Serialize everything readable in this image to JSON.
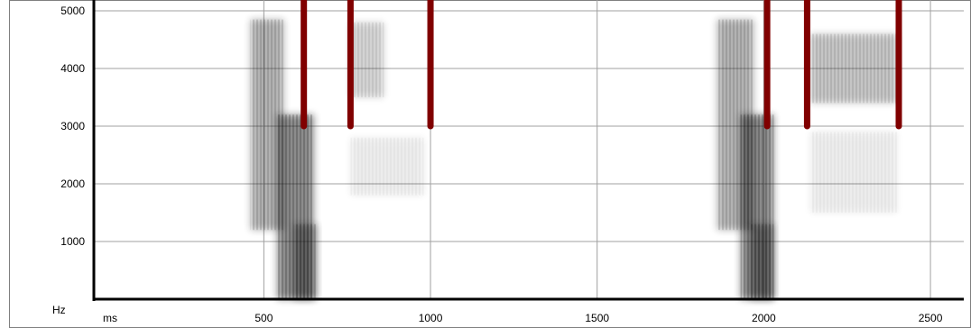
{
  "window": {
    "y_unit": "Hz",
    "x_unit": "ms"
  },
  "colors": {
    "background": "#ffffff",
    "grid": "#a0a0a0",
    "axis": "#000000",
    "marker": "#800000",
    "spectro_dark": "#1a1a1a"
  },
  "chart_data": {
    "type": "heatmap",
    "title": "",
    "xlabel": "ms",
    "ylabel": "Hz",
    "xlim": [
      -10,
      2600
    ],
    "ylim": [
      0,
      5000
    ],
    "x_ticks": [
      500,
      1000,
      1500,
      2000,
      2500
    ],
    "y_ticks": [
      1000,
      2000,
      3000,
      4000
    ],
    "y_top_label": "5000",
    "grid": true,
    "markers": [
      {
        "x": 620,
        "y_from": 3000,
        "y_to": 5000
      },
      {
        "x": 760,
        "y_from": 3000,
        "y_to": 5000
      },
      {
        "x": 1000,
        "y_from": 3000,
        "y_to": 5000
      },
      {
        "x": 2010,
        "y_from": 3000,
        "y_to": 5000
      },
      {
        "x": 2130,
        "y_from": 3000,
        "y_to": 5000
      },
      {
        "x": 2405,
        "y_from": 3000,
        "y_to": 5000
      }
    ],
    "energy_regions": [
      {
        "x0": 460,
        "x1": 560,
        "y0": 1200,
        "y1": 4850,
        "intensity": 0.6
      },
      {
        "x0": 540,
        "x1": 650,
        "y0": 0,
        "y1": 3200,
        "intensity": 0.9
      },
      {
        "x0": 590,
        "x1": 660,
        "y0": 0,
        "y1": 1300,
        "intensity": 0.7
      },
      {
        "x0": 760,
        "x1": 860,
        "y0": 3500,
        "y1": 4800,
        "intensity": 0.35
      },
      {
        "x0": 760,
        "x1": 980,
        "y0": 1800,
        "y1": 2800,
        "intensity": 0.15
      },
      {
        "x0": 1860,
        "x1": 1970,
        "y0": 1200,
        "y1": 4850,
        "intensity": 0.6
      },
      {
        "x0": 1930,
        "x1": 2030,
        "y0": 0,
        "y1": 3200,
        "intensity": 0.9
      },
      {
        "x0": 1960,
        "x1": 2030,
        "y0": 0,
        "y1": 1300,
        "intensity": 0.7
      },
      {
        "x0": 2140,
        "x1": 2400,
        "y0": 3400,
        "y1": 4600,
        "intensity": 0.45
      },
      {
        "x0": 2140,
        "x1": 2400,
        "y0": 1500,
        "y1": 2900,
        "intensity": 0.15
      }
    ]
  }
}
